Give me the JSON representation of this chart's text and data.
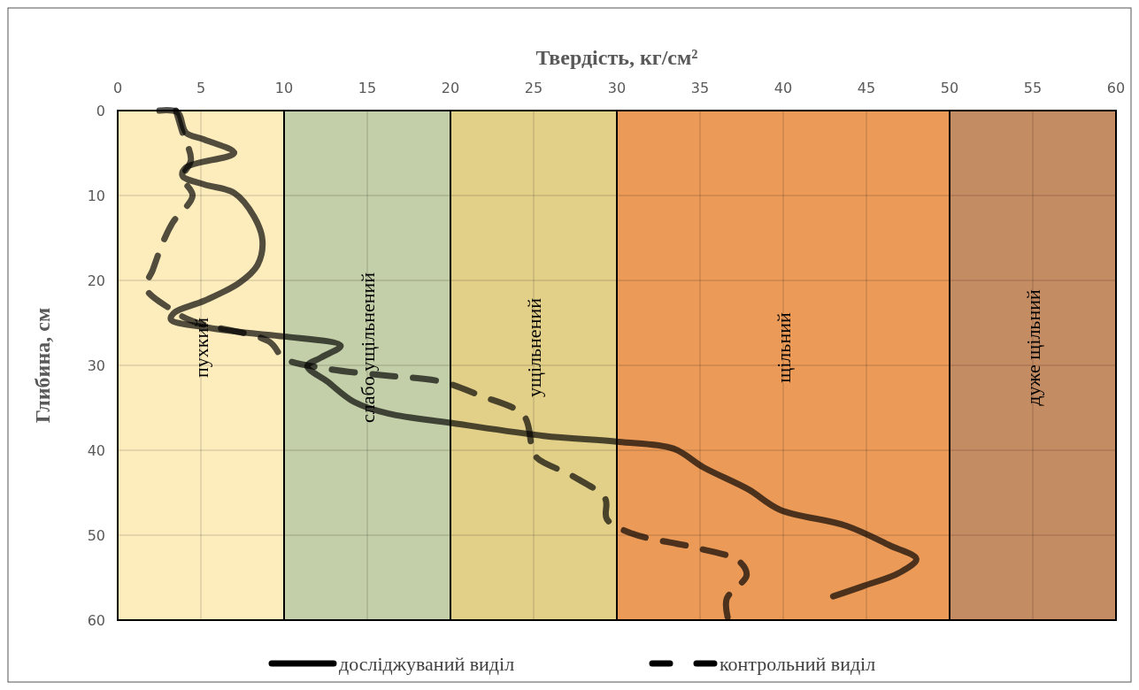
{
  "chart_data": {
    "type": "line",
    "xlabel": "Твердість, кг/см²",
    "ylabel": "Глибина, см",
    "xlim": [
      0,
      60
    ],
    "xticks": [
      0,
      5,
      10,
      15,
      20,
      25,
      30,
      35,
      40,
      45,
      50,
      55,
      60
    ],
    "ylim": [
      60,
      0
    ],
    "yticks": [
      0,
      10,
      20,
      30,
      40,
      50,
      60
    ],
    "grid": true,
    "legend": "bottom",
    "bands": [
      {
        "axis": "x",
        "from": 0,
        "to": 10,
        "label": "пухкий",
        "color": "#fdedbd"
      },
      {
        "axis": "x",
        "from": 10,
        "to": 20,
        "label": "слабо ущільнений",
        "color": "#c3cfa8"
      },
      {
        "axis": "x",
        "from": 20,
        "to": 30,
        "label": "ущільнений",
        "color": "#e2d088"
      },
      {
        "axis": "x",
        "from": 30,
        "to": 50,
        "label": "щільний",
        "color": "#eb9a57"
      },
      {
        "axis": "x",
        "from": 50,
        "to": 60,
        "label": "дуже щільний",
        "color": "#c48c62"
      }
    ],
    "series": [
      {
        "name": "досліджуваний виділ",
        "color": "#000000",
        "line_style": "solid",
        "x": [
          2.5,
          3.6,
          4.1,
          5.2,
          7.0,
          4.1,
          3.9,
          5.2,
          7.0,
          8.2,
          8.7,
          8.4,
          7.3,
          5.2,
          3.4,
          3.2,
          5.2,
          7.9,
          10.0,
          13.4,
          12.2,
          11.4,
          12.6,
          14.2,
          16.3,
          20.1,
          25.6,
          30.1,
          33.4,
          35.2,
          37.9,
          39.8,
          43.8,
          46.4,
          48.0,
          47.0,
          44.8,
          43.0
        ],
        "values": [
          0,
          0.2,
          2.6,
          3.4,
          5.0,
          6.7,
          7.7,
          8.7,
          9.7,
          12.5,
          15.3,
          18.2,
          20.3,
          22.4,
          23.8,
          24.6,
          25.5,
          26.2,
          26.6,
          27.7,
          29.1,
          30.1,
          31.9,
          34.3,
          35.7,
          36.8,
          38.3,
          39.0,
          39.8,
          42.0,
          44.6,
          47.0,
          48.9,
          51.2,
          52.8,
          54.4,
          56.0,
          57.2
        ]
      },
      {
        "name": "контрольний виділ",
        "color": "#000000",
        "line_style": "dashed",
        "x": [
          3.5,
          3.9,
          4.4,
          3.9,
          4.5,
          3.3,
          2.7,
          2.1,
          1.7,
          3.2,
          4.5,
          9.1,
          10.0,
          12.6,
          16.1,
          19.4,
          21.7,
          24.4,
          24.9,
          25.2,
          27.4,
          29.3,
          29.4,
          30.9,
          34.8,
          37.3,
          37.8,
          36.6,
          36.7
        ],
        "values": [
          0,
          2.6,
          5.8,
          7.9,
          10,
          13.2,
          15.6,
          18.8,
          20.9,
          23.4,
          24.8,
          27.2,
          29.2,
          30.4,
          31.2,
          31.9,
          33.5,
          35.9,
          39.6,
          40.9,
          43.1,
          45.7,
          48.1,
          49.8,
          51.5,
          53.0,
          54.7,
          57.5,
          60
        ]
      }
    ]
  }
}
